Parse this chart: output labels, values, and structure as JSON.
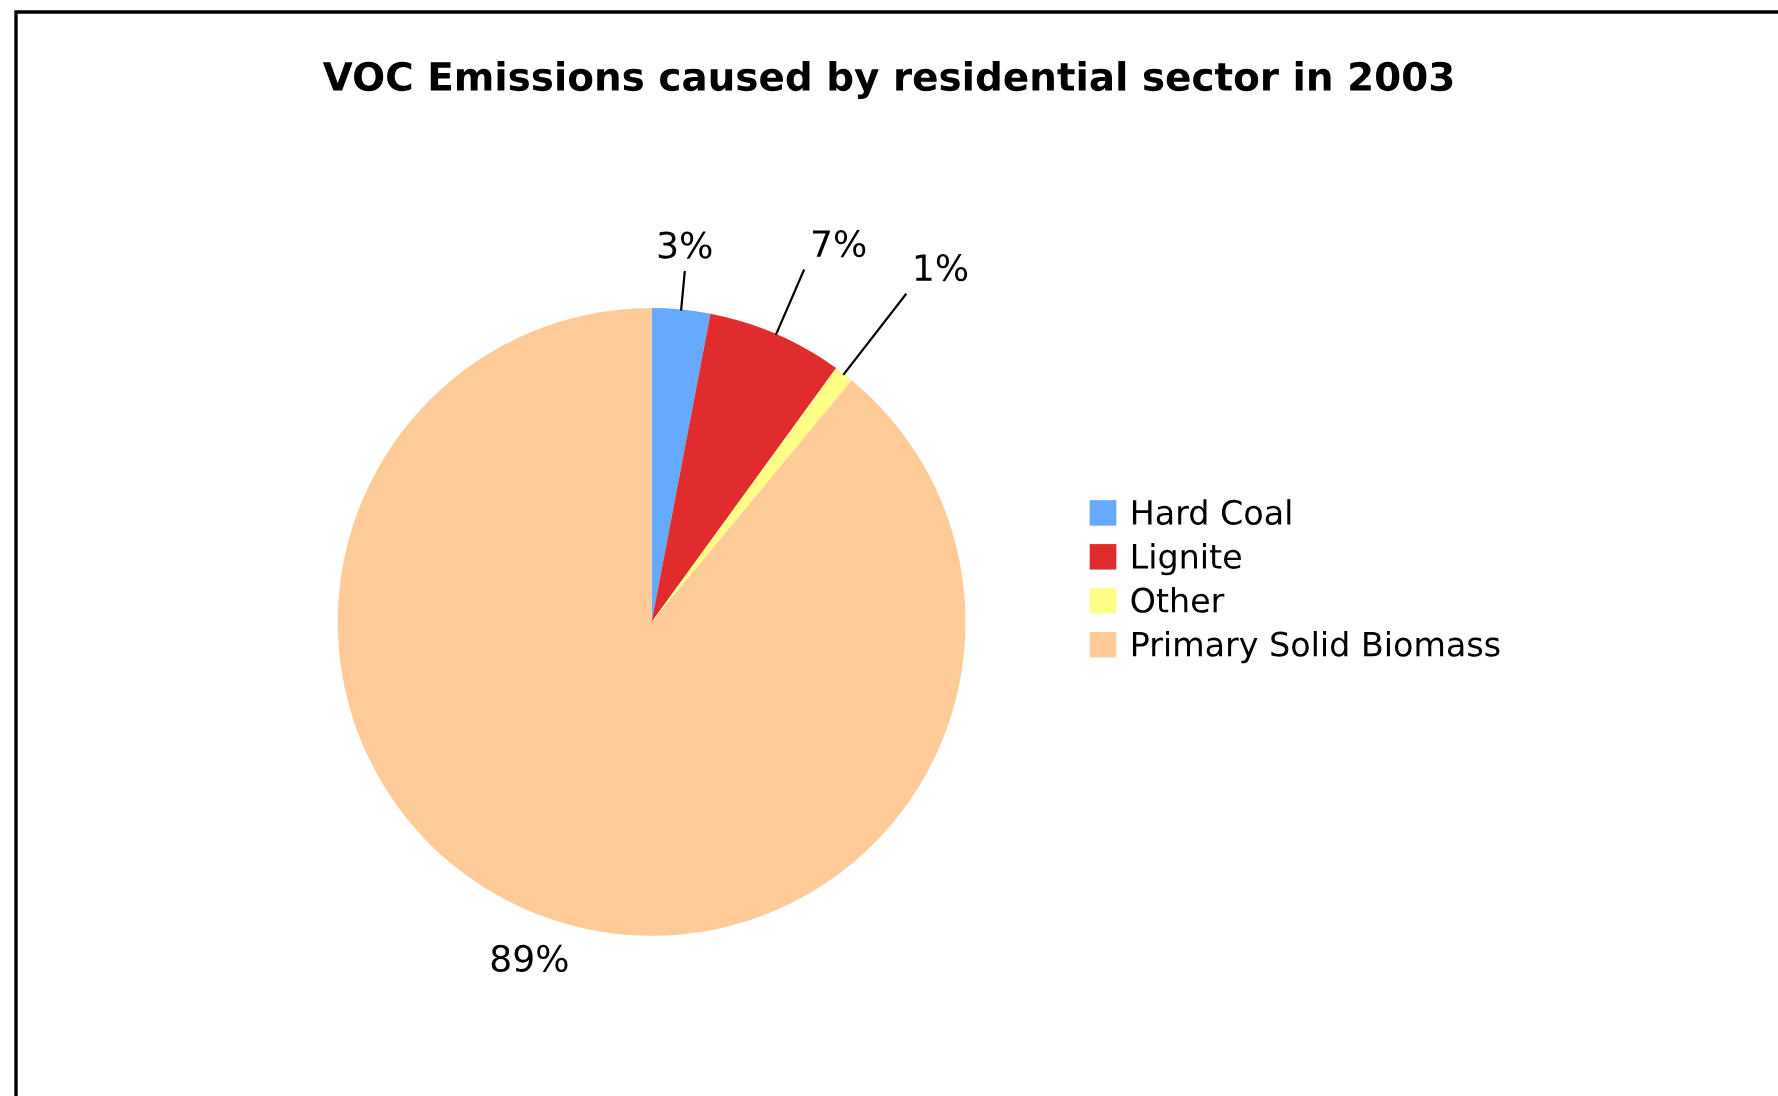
{
  "chart_data": {
    "type": "pie",
    "title": "VOC Emissions caused by residential sector in 2003",
    "categories": [
      "Hard Coal",
      "Lignite",
      "Other",
      "Primary Solid Biomass"
    ],
    "values": [
      3,
      7,
      1,
      89
    ],
    "colors": [
      "#66aaff",
      "#e02c2c",
      "#ffff88",
      "#ffcc99"
    ],
    "value_labels": [
      "3%",
      "7%",
      "1%",
      "89%"
    ],
    "legend": "right"
  }
}
